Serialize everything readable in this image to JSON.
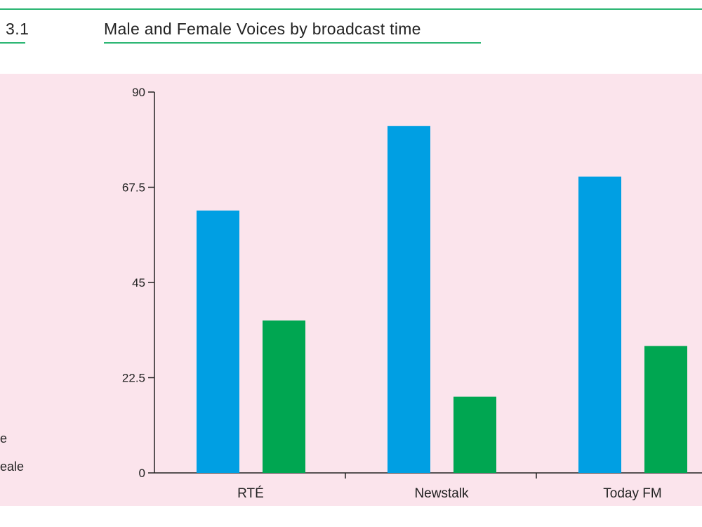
{
  "header": {
    "figure_number": "3.1",
    "title": "Male and Female Voices by broadcast time"
  },
  "legend": {
    "items": [
      {
        "label": "e",
        "color": "#009fe3"
      },
      {
        "label": "eale",
        "color": "#00a651"
      }
    ]
  },
  "colors": {
    "male": "#009fe3",
    "female": "#00a651",
    "panel": "#fbe4ec",
    "accent_rule": "#2bb673"
  },
  "chart_data": {
    "type": "bar",
    "categories": [
      "RTÉ",
      "Newstalk",
      "Today FM"
    ],
    "series": [
      {
        "values": [
          62,
          82,
          70
        ],
        "color": "#009fe3"
      },
      {
        "values": [
          36,
          18,
          30
        ],
        "color": "#00a651"
      }
    ],
    "y_ticks": [
      "0",
      "22.5",
      "45",
      "67.5",
      "90"
    ],
    "ylim": [
      0,
      90
    ],
    "grid": false
  }
}
